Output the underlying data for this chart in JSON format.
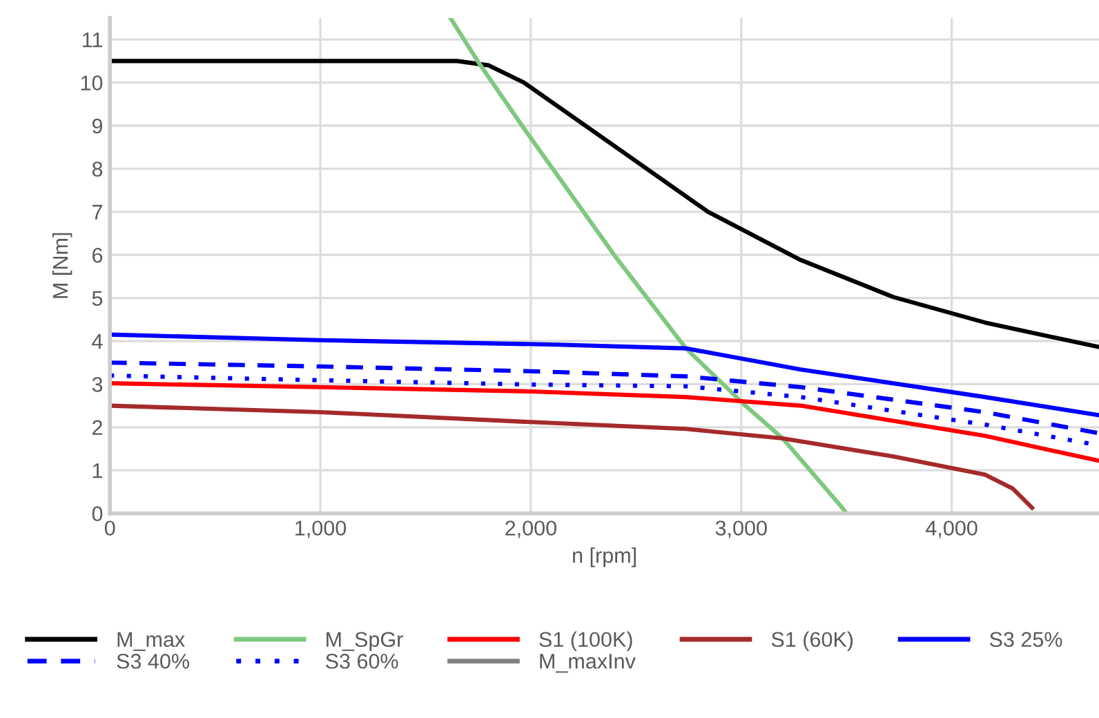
{
  "chart_data": {
    "type": "line",
    "xlabel": "n [rpm]",
    "ylabel": "M [Nm]",
    "xlim": [
      0,
      4700
    ],
    "ylim": [
      0,
      11.5
    ],
    "xticks": [
      0,
      {
        "value": 1000,
        "label": "1,000"
      },
      {
        "value": 2000,
        "label": "2,000"
      },
      {
        "value": 3000,
        "label": "3,000"
      },
      {
        "value": 4000,
        "label": "4,000"
      }
    ],
    "yticks": [
      0,
      1,
      2,
      3,
      4,
      5,
      6,
      7,
      8,
      9,
      10,
      11
    ],
    "grid": true,
    "legend": "bottom",
    "marker": "none",
    "series": [
      {
        "name": "M_max",
        "color": "#000000",
        "line_style": "solid",
        "x": [
          0,
          1650,
          1800,
          1967,
          2408,
          2842,
          3283,
          3724,
          4158,
          4700
        ],
        "values": [
          10.5,
          10.5,
          10.4,
          10.0,
          8.49,
          7.0,
          5.88,
          5.02,
          4.43,
          3.86
        ]
      },
      {
        "name": "M_SpGr",
        "color": "#80c880",
        "line_style": "solid",
        "x": [
          1618,
          1750,
          1967,
          2408,
          2737,
          3020,
          3197,
          3480,
          3500
        ],
        "values": [
          11.5,
          10.48,
          8.94,
          5.92,
          3.83,
          2.5,
          1.74,
          0.13,
          0
        ]
      },
      {
        "name": "S1 (100K)",
        "color": "#ff0000",
        "line_style": "solid",
        "x": [
          0,
          1000,
          2000,
          2737,
          3283,
          4158,
          4700
        ],
        "values": [
          3.02,
          2.93,
          2.83,
          2.7,
          2.5,
          1.8,
          1.22
        ]
      },
      {
        "name": "S1 (60K)",
        "color": "#a52a2a",
        "line_style": "solid",
        "x": [
          0,
          1000,
          2000,
          2737,
          3197,
          3724,
          4158,
          4289,
          4382
        ],
        "values": [
          2.5,
          2.35,
          2.12,
          1.96,
          1.74,
          1.32,
          0.9,
          0.58,
          0.13
        ]
      },
      {
        "name": "S3 25%",
        "color": "#0000ff",
        "line_style": "solid",
        "x": [
          0,
          1000,
          2099,
          2737,
          3283,
          4158,
          4700
        ],
        "values": [
          4.15,
          4.02,
          3.92,
          3.83,
          3.34,
          2.7,
          2.28
        ]
      },
      {
        "name": "S3 40%",
        "color": "#0000ff",
        "line_style": "dashed",
        "x": [
          0,
          1000,
          2000,
          2737,
          3283,
          4158,
          4700
        ],
        "values": [
          3.5,
          3.41,
          3.3,
          3.18,
          2.93,
          2.35,
          1.86
        ]
      },
      {
        "name": "S3 60%",
        "color": "#0000ff",
        "line_style": "dotted",
        "x": [
          0,
          1000,
          2000,
          2737,
          3283,
          4158,
          4700
        ],
        "values": [
          3.2,
          3.09,
          2.99,
          2.95,
          2.7,
          2.06,
          1.58
        ]
      },
      {
        "name": "M_maxInv",
        "color": "#808080",
        "line_style": "solid"
      }
    ]
  }
}
